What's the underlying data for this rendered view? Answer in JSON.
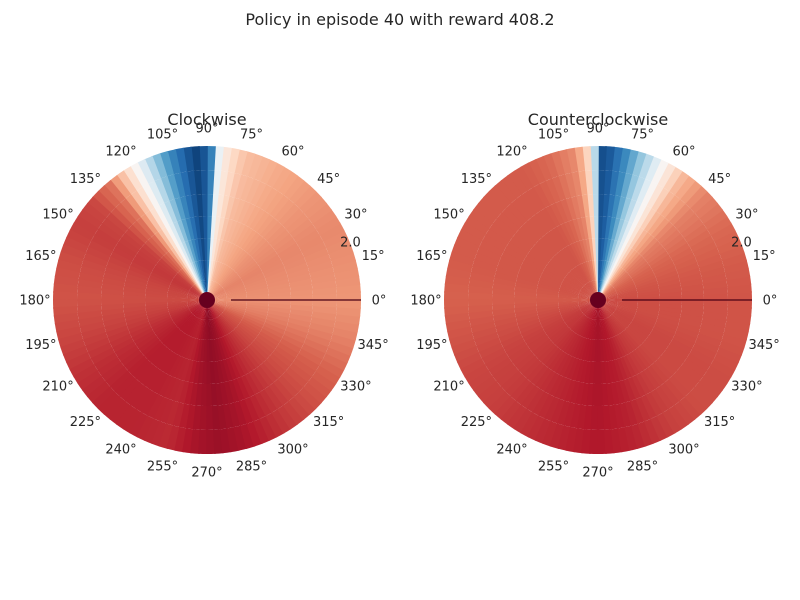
{
  "figure": {
    "suptitle": "Policy in episode 40 with reward 408.2"
  },
  "chart_data": [
    {
      "type": "heatmap",
      "projection": "polar",
      "title": "Clockwise",
      "theta_ticks_deg": [
        0,
        15,
        30,
        45,
        60,
        75,
        90,
        105,
        120,
        135,
        150,
        165,
        180,
        195,
        210,
        225,
        240,
        255,
        270,
        285,
        300,
        315,
        330,
        345
      ],
      "theta_tick_labels": [
        "0°",
        "15°",
        "30°",
        "45°",
        "60°",
        "75°",
        "90°",
        "105°",
        "120°",
        "135°",
        "150°",
        "165°",
        "180°",
        "195°",
        "210°",
        "225°",
        "240°",
        "255°",
        "270°",
        "285°",
        "300°",
        "315°",
        "330°",
        "345°"
      ],
      "r_tick_labels": [
        "2.0"
      ],
      "r_max": 2.0,
      "colormap": "RdBu",
      "angle_values_deg": [
        0,
        15,
        30,
        45,
        60,
        75,
        82,
        86,
        88,
        90,
        95,
        100,
        105,
        110,
        115,
        120,
        130,
        140,
        150,
        165,
        180,
        195,
        210,
        225,
        240,
        255,
        265,
        270,
        275,
        285,
        300,
        315,
        330,
        345,
        360
      ],
      "color_values": [
        0.27,
        0.26,
        0.25,
        0.27,
        0.3,
        0.34,
        0.42,
        0.55,
        0.8,
        0.9,
        0.95,
        0.88,
        0.8,
        0.7,
        0.58,
        0.45,
        0.22,
        0.15,
        0.14,
        0.16,
        0.17,
        0.15,
        0.12,
        0.1,
        0.1,
        0.11,
        0.07,
        0.06,
        0.05,
        0.07,
        0.12,
        0.16,
        0.19,
        0.24,
        0.27
      ]
    },
    {
      "type": "heatmap",
      "projection": "polar",
      "title": "Counterclockwise",
      "theta_ticks_deg": [
        0,
        15,
        30,
        45,
        60,
        75,
        90,
        105,
        120,
        135,
        150,
        165,
        180,
        195,
        210,
        225,
        240,
        255,
        270,
        285,
        300,
        315,
        330,
        345
      ],
      "theta_tick_labels": [
        "0°",
        "15°",
        "30°",
        "45°",
        "60°",
        "75°",
        "90°",
        "105°",
        "120°",
        "135°",
        "150°",
        "165°",
        "180°",
        "195°",
        "210°",
        "225°",
        "240°",
        "255°",
        "270°",
        "285°",
        "300°",
        "315°",
        "330°",
        "345°"
      ],
      "r_tick_labels": [
        "2.0"
      ],
      "r_max": 2.0,
      "colormap": "RdBu",
      "angle_values_deg": [
        0,
        15,
        30,
        45,
        55,
        60,
        65,
        70,
        75,
        80,
        85,
        88,
        90,
        92,
        95,
        100,
        110,
        120,
        135,
        150,
        165,
        180,
        195,
        210,
        225,
        240,
        255,
        270,
        285,
        300,
        315,
        330,
        345,
        360
      ],
      "color_values": [
        0.17,
        0.18,
        0.2,
        0.24,
        0.32,
        0.4,
        0.5,
        0.62,
        0.72,
        0.82,
        0.9,
        0.94,
        0.88,
        0.55,
        0.35,
        0.25,
        0.2,
        0.18,
        0.18,
        0.18,
        0.18,
        0.19,
        0.17,
        0.15,
        0.14,
        0.12,
        0.1,
        0.08,
        0.1,
        0.14,
        0.16,
        0.16,
        0.17,
        0.17
      ]
    }
  ]
}
